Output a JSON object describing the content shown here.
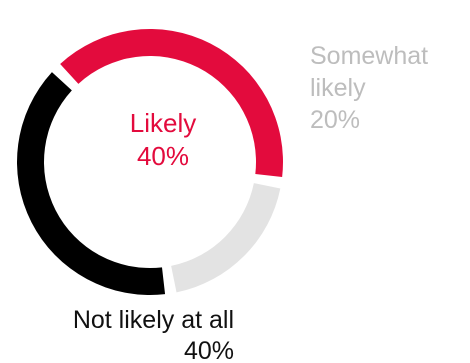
{
  "chart_data": {
    "type": "pie",
    "donut": true,
    "slices": [
      {
        "label": "Likely",
        "value": 40,
        "display": "40%",
        "color": "#e30b3d"
      },
      {
        "label": "Somewhat likely",
        "value": 20,
        "display": "20%",
        "color": "#e3e3e3"
      },
      {
        "label": "Not likely at all",
        "value": 40,
        "display": "40%",
        "color": "#000000"
      }
    ],
    "center_label": {
      "line1": "Likely",
      "line2": "40%",
      "color": "#e30b3d"
    },
    "labels": {
      "somewhat": {
        "line1": "Somewhat",
        "line2": "likely",
        "line3": "20%",
        "color": "#bdbdbd"
      },
      "not_likely": {
        "line1": "Not likely at all",
        "line2": "40%",
        "color": "#111111"
      }
    }
  }
}
